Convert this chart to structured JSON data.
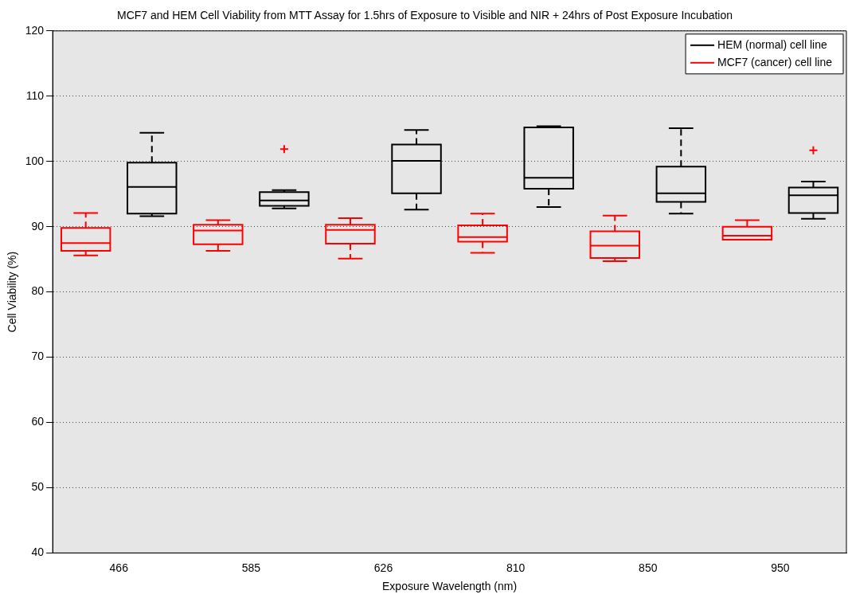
{
  "chart_data": {
    "type": "box",
    "title": "MCF7 and HEM Cell Viability from MTT Assay for 1.5hrs of Exposure to Visible and NIR + 24hrs of Post Exposure Incubation",
    "xlabel": "Exposure Wavelength (nm)",
    "ylabel": "Cell Viability (%)",
    "categories": [
      "466",
      "585",
      "626",
      "810",
      "850",
      "950"
    ],
    "ylim": [
      40,
      120
    ],
    "yticks": [
      40,
      50,
      60,
      70,
      80,
      90,
      100,
      110,
      120
    ],
    "grid": "y",
    "legend": "top right",
    "marker": "cross",
    "series": [
      {
        "name": "MCF7 (cancer) cell line",
        "color": "#ff0000",
        "boxes": [
          {
            "low": 85.6,
            "q1": 86.3,
            "median": 87.5,
            "q3": 89.8,
            "high": 92.1
          },
          {
            "low": 86.3,
            "q1": 87.3,
            "median": 89.4,
            "q3": 90.3,
            "high": 91.0
          },
          {
            "low": 85.1,
            "q1": 87.4,
            "median": 89.5,
            "q3": 90.3,
            "high": 91.3
          },
          {
            "low": 86.0,
            "q1": 87.7,
            "median": 88.4,
            "q3": 90.2,
            "high": 92.0
          },
          {
            "low": 84.7,
            "q1": 85.2,
            "median": 87.1,
            "q3": 89.3,
            "high": 91.7
          },
          {
            "low": 88.0,
            "q1": 88.0,
            "median": 88.6,
            "q3": 90.0,
            "high": 91.0
          }
        ]
      },
      {
        "name": "HEM (normal) cell line",
        "color": "#000000",
        "boxes": [
          {
            "low": 91.6,
            "q1": 92.0,
            "median": 96.1,
            "q3": 99.8,
            "high": 104.4
          },
          {
            "low": 92.8,
            "q1": 93.2,
            "median": 94.0,
            "q3": 95.3,
            "high": 95.6,
            "outliers": [
              101.9
            ]
          },
          {
            "low": 92.6,
            "q1": 95.1,
            "median": 100.1,
            "q3": 102.6,
            "high": 104.8
          },
          {
            "low": 93.0,
            "q1": 95.8,
            "median": 97.5,
            "q3": 105.2,
            "high": 105.4
          },
          {
            "low": 92.0,
            "q1": 93.8,
            "median": 95.1,
            "q3": 99.2,
            "high": 105.1
          },
          {
            "low": 91.2,
            "q1": 92.1,
            "median": 94.8,
            "q3": 96.0,
            "high": 96.9,
            "outliers": [
              101.7
            ]
          }
        ]
      }
    ]
  }
}
